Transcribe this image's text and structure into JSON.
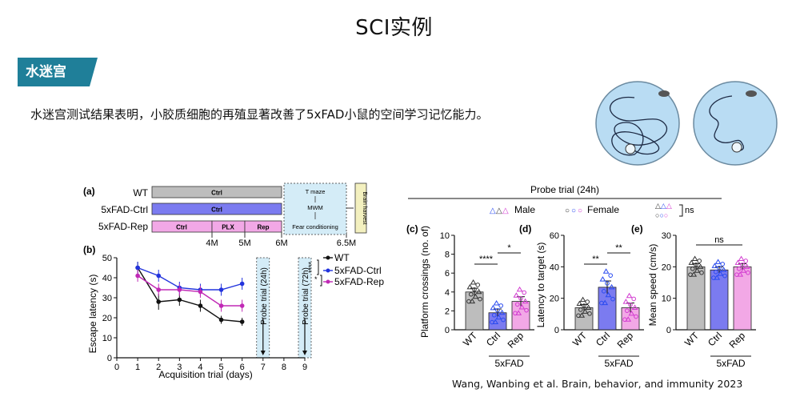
{
  "page": {
    "title": "SCI实例",
    "section_tag": "水迷宫",
    "description": "水迷宫测试结果表明，小胶质细胞的再殖显著改善了5xFAD小鼠的空间学习记忆能力。",
    "citation": "Wang, Wanbing et al. Brain, behavior, and immunity 2023"
  },
  "schematic": {
    "panel_label": "(a)",
    "groups": [
      "WT",
      "5xFAD-Ctrl",
      "5xFAD-Rep"
    ],
    "ctrl_label": "Ctrl",
    "plx_label": "PLX",
    "rep_label": "Rep",
    "time_labels": [
      "4M",
      "5M",
      "6M",
      "6.5M"
    ],
    "tests": [
      "T maze",
      "MWM",
      "Fear conditioning"
    ],
    "harvest": "Brain harvest",
    "colors": {
      "wt": "#bdbdbd",
      "ctrl": "#7b7bf0",
      "rep": "#f2a8e6",
      "test_box": "#d4ecf7",
      "harvest": "#f3f0bf"
    }
  },
  "chart_data": [
    {
      "panel": "(b)",
      "type": "line",
      "xlabel": "Acquisition trial (days)",
      "ylabel": "Escape latency (s)",
      "xlim": [
        0,
        9
      ],
      "ylim": [
        0,
        50
      ],
      "x_ticks": [
        "0",
        "1",
        "2",
        "3",
        "4",
        "5",
        "6",
        "7",
        "8",
        "9"
      ],
      "y_ticks": [
        "0",
        "10",
        "20",
        "30",
        "40",
        "50"
      ],
      "annotations": [
        "Probe trial (24h)",
        "Probe trial (72h)"
      ],
      "significance": [
        "****",
        "*"
      ],
      "series": [
        {
          "name": "WT",
          "color": "#111111",
          "x": [
            1,
            2,
            3,
            4,
            5,
            6
          ],
          "y": [
            45,
            28,
            29,
            26,
            19,
            18
          ],
          "err": [
            3,
            4,
            3,
            3,
            2,
            2
          ]
        },
        {
          "name": "5xFAD-Ctrl",
          "color": "#2233dd",
          "x": [
            1,
            2,
            3,
            4,
            5,
            6
          ],
          "y": [
            45,
            41,
            35,
            34,
            34,
            37
          ],
          "err": [
            3,
            3,
            3,
            3,
            3,
            3
          ]
        },
        {
          "name": "5xFAD-Rep",
          "color": "#c028b5",
          "x": [
            1,
            2,
            3,
            4,
            5,
            6
          ],
          "y": [
            41,
            34,
            34,
            33,
            26,
            26
          ],
          "err": [
            3,
            3,
            3,
            3,
            3,
            3
          ]
        }
      ]
    },
    {
      "panel": "(c)",
      "type": "bar",
      "ylabel": "Platform crossings (no. of)",
      "categories": [
        "WT",
        "Ctrl",
        "Rep"
      ],
      "group_label": "5xFAD",
      "values": [
        4,
        1.8,
        3
      ],
      "err": [
        0.4,
        0.4,
        0.5
      ],
      "ylim": [
        0,
        10
      ],
      "y_ticks": [
        "0",
        "2",
        "4",
        "6",
        "8",
        "10"
      ],
      "significance": [
        {
          "pair": [
            0,
            1
          ],
          "text": "****"
        },
        {
          "pair": [
            1,
            2
          ],
          "text": "*"
        }
      ]
    },
    {
      "panel": "(d)",
      "type": "bar",
      "ylabel": "Latency to target (s)",
      "categories": [
        "WT",
        "Ctrl",
        "Rep"
      ],
      "group_label": "5xFAD",
      "values": [
        14,
        27,
        14
      ],
      "err": [
        2,
        4,
        3
      ],
      "ylim": [
        0,
        60
      ],
      "y_ticks": [
        "0",
        "20",
        "40",
        "60"
      ],
      "significance": [
        {
          "pair": [
            0,
            1
          ],
          "text": "**"
        },
        {
          "pair": [
            1,
            2
          ],
          "text": "**"
        }
      ]
    },
    {
      "panel": "(e)",
      "type": "bar",
      "ylabel": "Mean speed (cm/s)",
      "categories": [
        "WT",
        "Ctrl",
        "Rep"
      ],
      "group_label": "5xFAD",
      "values": [
        20,
        19,
        20
      ],
      "err": [
        1,
        1,
        1
      ],
      "ylim": [
        0,
        30
      ],
      "y_ticks": [
        "0",
        "10",
        "20",
        "30"
      ],
      "significance": [
        {
          "pair": [
            0,
            2
          ],
          "text": "ns"
        }
      ]
    }
  ],
  "probe_header": "Probe trial (24h)",
  "legend": {
    "male": "Male",
    "female": "Female",
    "ns": "ns"
  },
  "bar_colors": [
    "#bdbdbd",
    "#7b7bf0",
    "#f2a8e6"
  ],
  "point_colors": [
    "#333333",
    "#2a4bf0",
    "#d23ad0"
  ],
  "icons": [
    "maze-trajectory-icon",
    "mouse-icon"
  ]
}
